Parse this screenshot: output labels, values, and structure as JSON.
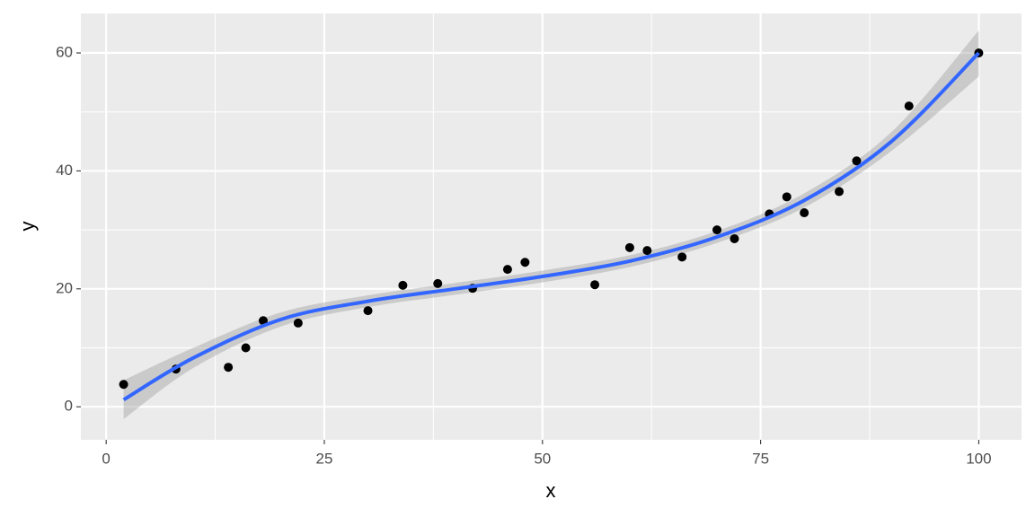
{
  "chart_data": {
    "type": "scatter",
    "xlabel": "x",
    "ylabel": "y",
    "x": [
      2,
      8,
      14,
      16,
      18,
      22,
      30,
      34,
      38,
      42,
      46,
      48,
      56,
      60,
      62,
      66,
      70,
      72,
      76,
      78,
      80,
      84,
      86,
      92,
      100
    ],
    "values": [
      3.8,
      6.4,
      6.7,
      10.0,
      14.6,
      14.2,
      16.3,
      20.6,
      20.9,
      20.1,
      23.3,
      24.5,
      20.7,
      27.0,
      26.5,
      25.4,
      30.0,
      28.5,
      32.7,
      35.6,
      32.9,
      36.5,
      41.7,
      51.0,
      60.0
    ],
    "color": "#000000",
    "smooth": {
      "x": [
        2,
        10,
        20,
        30,
        40,
        50,
        60,
        70,
        80,
        90,
        100
      ],
      "values": [
        1.2,
        8.3,
        14.8,
        17.9,
        20.0,
        22.1,
        24.7,
        28.8,
        35.0,
        45.0,
        60.0
      ],
      "lower": [
        -2.1,
        6.6,
        13.6,
        16.9,
        19.0,
        21.1,
        23.7,
        27.8,
        33.8,
        43.4,
        56.0
      ],
      "upper": [
        4.5,
        10.0,
        16.0,
        18.9,
        21.0,
        23.1,
        25.7,
        29.8,
        36.2,
        46.6,
        63.8
      ],
      "color": "#3366FF",
      "band_color": "#999999"
    },
    "xlim": [
      -2.9,
      104.9
    ],
    "ylim": [
      -5.6,
      66.7
    ],
    "xticks": [
      0,
      25,
      50,
      75,
      100
    ],
    "yticks": [
      0,
      20,
      40,
      60
    ],
    "x_minor_breaks": [
      12.5,
      37.5,
      62.5,
      87.5
    ],
    "y_minor_breaks": [
      10,
      30,
      50
    ],
    "grid": true
  }
}
